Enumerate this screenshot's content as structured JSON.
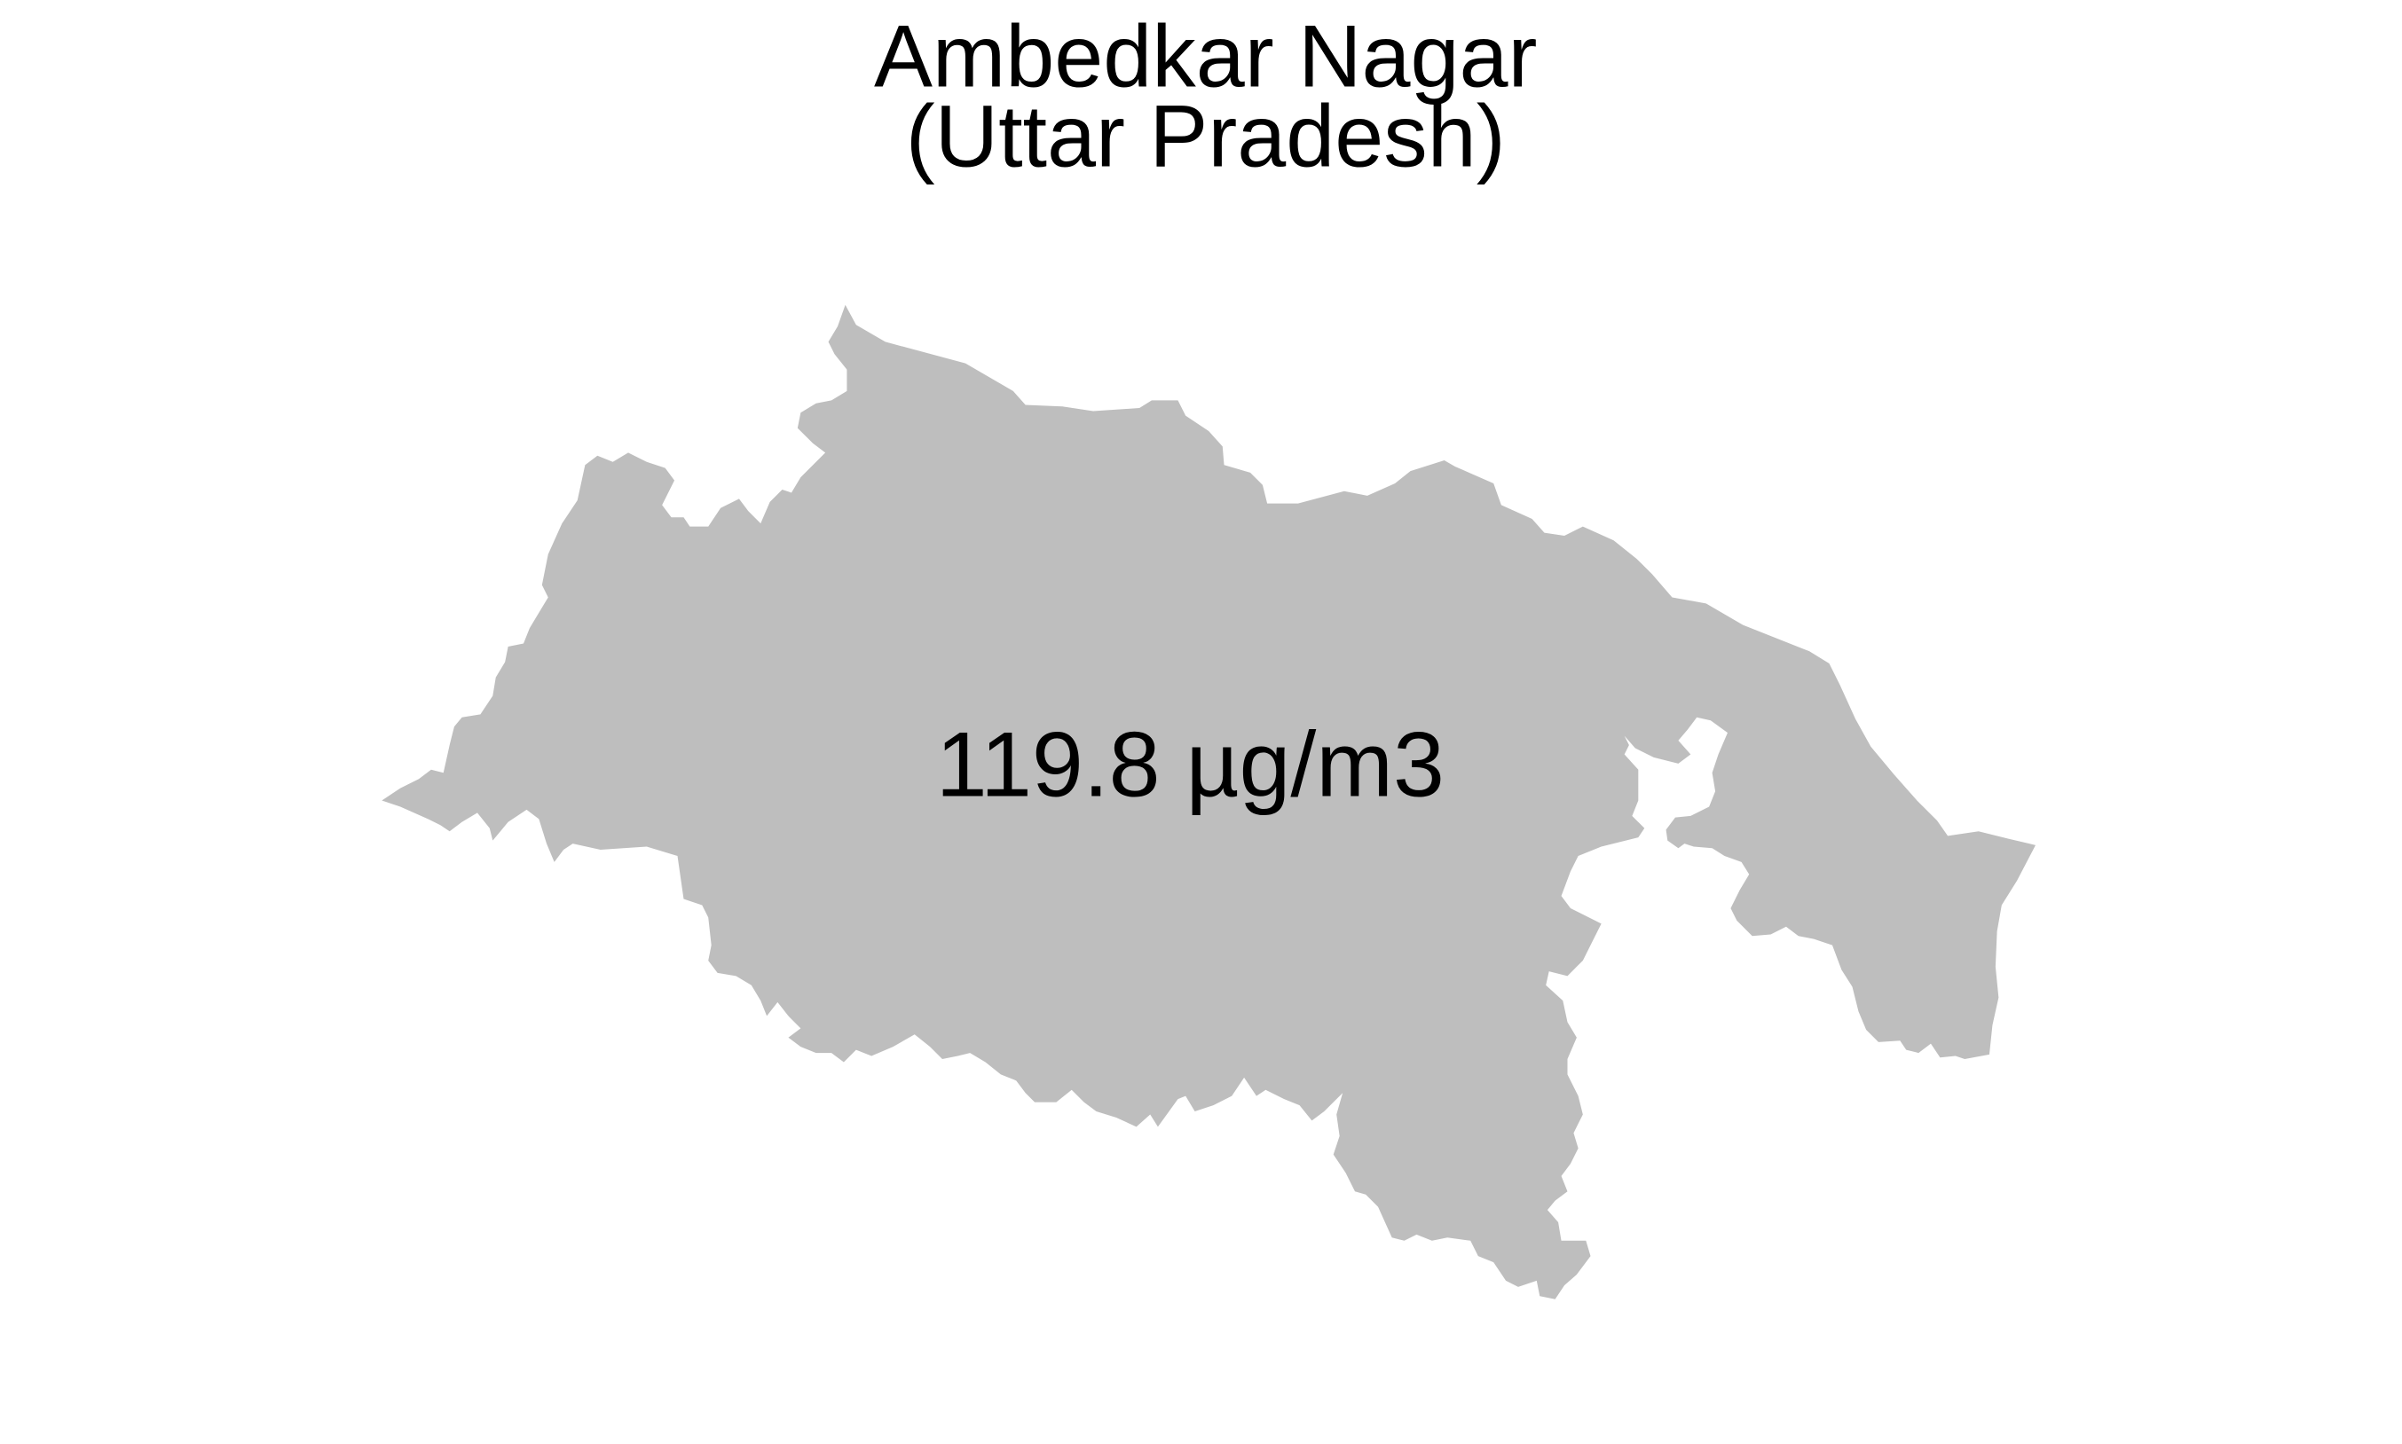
{
  "map": {
    "title": "Ambedkar Nagar",
    "subtitle": "(Uttar Pradesh)",
    "region_value_label": "119.8 µg/m3",
    "region_fill_color": "#bebebe",
    "background_color": "#ffffff"
  }
}
